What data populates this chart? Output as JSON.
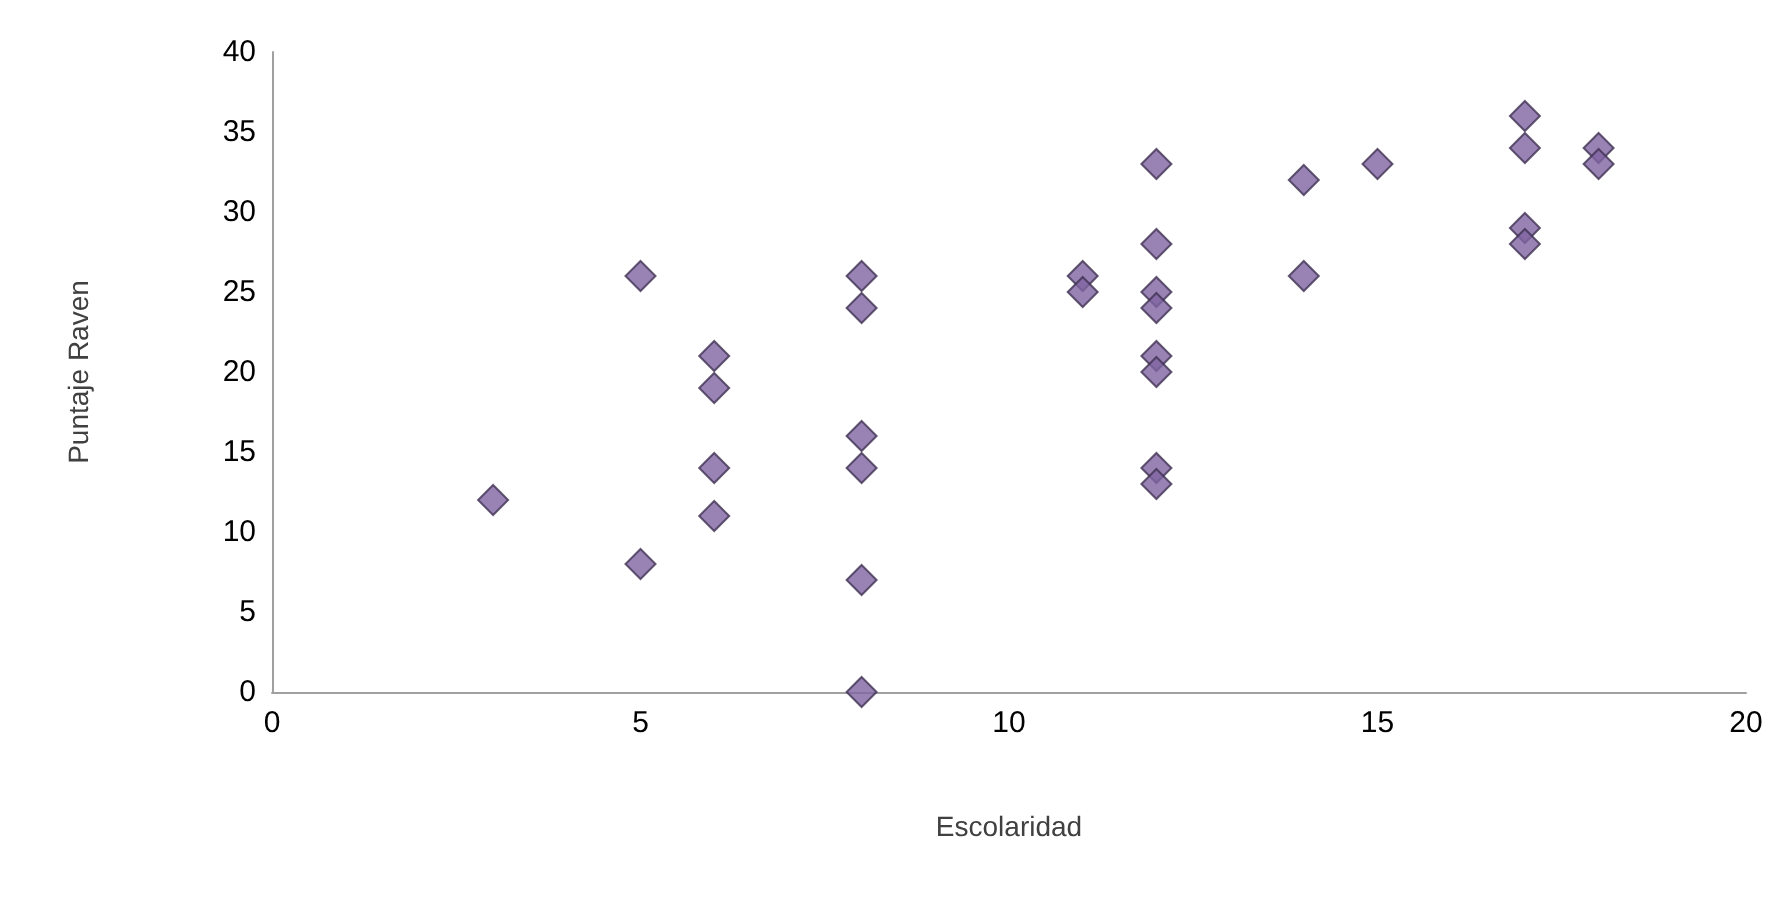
{
  "chart_data": {
    "type": "scatter",
    "xlabel": "Escolaridad",
    "ylabel": "Puntaje Raven",
    "x": [
      3,
      5,
      5,
      6,
      6,
      6,
      6,
      8,
      8,
      8,
      8,
      8,
      8,
      11,
      11,
      12,
      12,
      12,
      12,
      12,
      12,
      12,
      12,
      14,
      14,
      15,
      17,
      17,
      17,
      17,
      18,
      18
    ],
    "values": [
      12,
      26,
      8,
      21,
      19,
      14,
      11,
      26,
      24,
      16,
      14,
      7,
      0,
      26,
      25,
      33,
      28,
      25,
      24,
      21,
      20,
      14,
      13,
      32,
      26,
      33,
      36,
      34,
      29,
      28,
      34,
      33
    ],
    "color": "#8064a2",
    "marker": "diamond",
    "xlim": [
      0,
      20
    ],
    "xticks": [
      0,
      5,
      10,
      15,
      20
    ],
    "ylim": [
      0,
      40
    ],
    "yticks": [
      0,
      5,
      10,
      15,
      20,
      25,
      30,
      35,
      40
    ]
  }
}
